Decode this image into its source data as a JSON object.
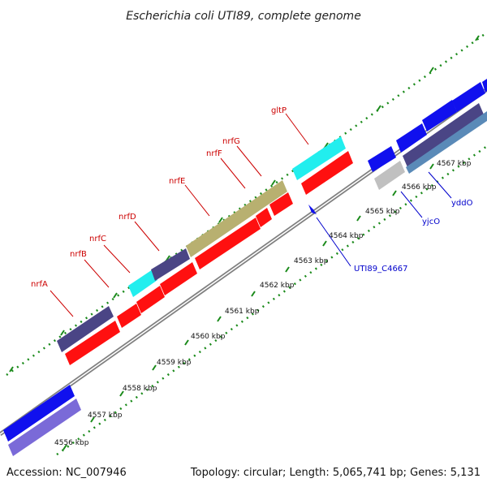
{
  "title": "Escherichia coli UTI89, complete genome",
  "footer": {
    "accession": "Accession: NC_007946",
    "summary": "Topology: circular; Length: 5,065,741 bp; Genes: 5,131"
  },
  "colors": {
    "backbone": "#808080",
    "tick": "#1a8a1a",
    "label_red": "#cc0000",
    "label_blue": "#0000cc",
    "dark_slate": "#4a4585",
    "red": "#ff1010",
    "cyan": "#22eeee",
    "olive": "#b8b070",
    "blue": "#1010ee",
    "light_purple": "#7a6ad8",
    "gray": "#c0c0c0",
    "steel": "#5a8ab8"
  },
  "scale_labels": [
    "4556 kbp",
    "4557 kbp",
    "4558 kbp",
    "4559 kbp",
    "4560 kbp",
    "4561 kbp",
    "4562 kbp",
    "4563 kbp",
    "4564 kbp",
    "4565 kbp",
    "4566 kbp",
    "4567 kbp"
  ],
  "gene_labels_red": [
    "nrfA",
    "nrfB",
    "nrfC",
    "nrfD",
    "nrfE",
    "nrfF",
    "nrfG",
    "gltP"
  ],
  "gene_labels_blue": [
    "UTI89_C4667",
    "yjcO",
    "yddO"
  ]
}
